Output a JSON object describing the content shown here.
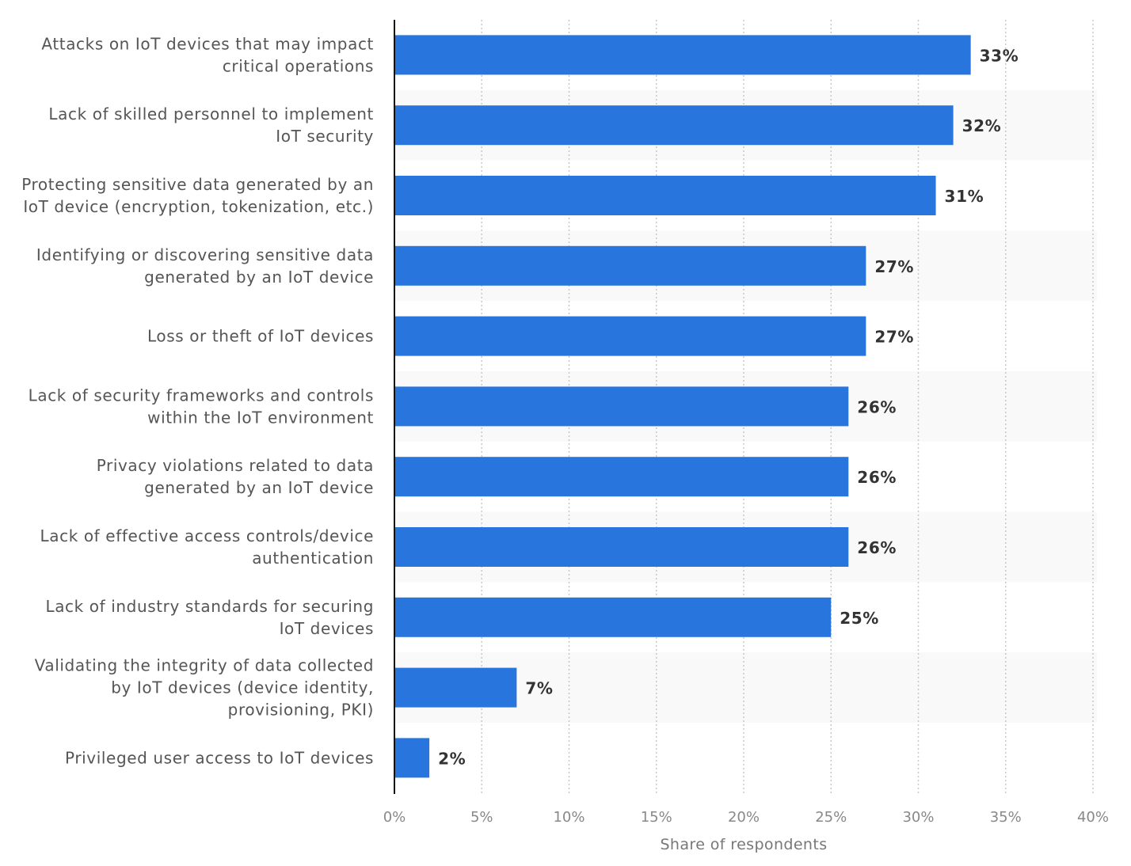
{
  "chart_data": {
    "type": "bar",
    "orientation": "horizontal",
    "categories": [
      [
        "Attacks on IoT devices that may impact",
        "critical operations"
      ],
      [
        "Lack of skilled personnel to implement",
        "IoT security"
      ],
      [
        "Protecting sensitive data generated by an",
        "IoT device (encryption, tokenization, etc.)"
      ],
      [
        "Identifying or discovering sensitive data",
        "generated by an IoT device"
      ],
      [
        "Loss or theft of IoT devices"
      ],
      [
        "Lack of security frameworks and controls",
        "within the IoT environment"
      ],
      [
        "Privacy violations related to data",
        "generated by an IoT device"
      ],
      [
        "Lack of effective access controls/device",
        "authentication"
      ],
      [
        "Lack of industry standards for securing",
        "IoT devices"
      ],
      [
        "Validating the integrity of data collected",
        "by IoT devices (device identity,",
        "provisioning, PKI)"
      ],
      [
        "Privileged user access to IoT devices"
      ]
    ],
    "values": [
      33,
      32,
      31,
      27,
      27,
      26,
      26,
      26,
      25,
      7,
      2
    ],
    "data_labels": [
      "33%",
      "32%",
      "31%",
      "27%",
      "27%",
      "26%",
      "26%",
      "26%",
      "25%",
      "7%",
      "2%"
    ],
    "xlabel": "Share of respondents",
    "xlim": [
      0,
      40
    ],
    "xticks": [
      "0%",
      "5%",
      "10%",
      "15%",
      "20%",
      "25%",
      "30%",
      "35%",
      "40%"
    ],
    "grid": "vertical dotted",
    "bar_color": "#2876dd",
    "band_color": "#f9f9f9"
  }
}
